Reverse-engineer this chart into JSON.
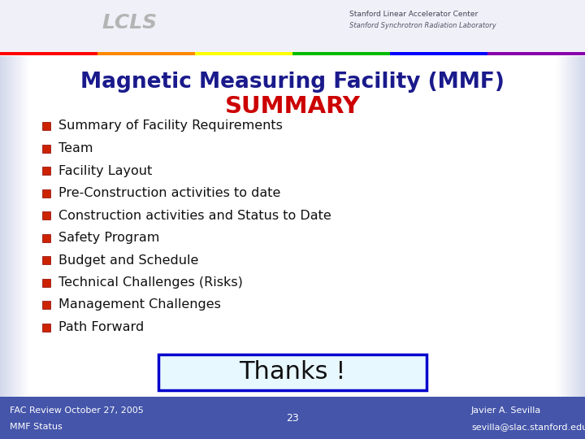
{
  "title_line1": "Magnetic Measuring Facility (MMF)",
  "title_line2": "SUMMARY",
  "title_line1_color": "#1a1a8c",
  "title_line2_color": "#cc0000",
  "bullet_items": [
    "Summary of Facility Requirements",
    "Team",
    "Facility Layout",
    "Pre-Construction activities to date",
    "Construction activities and Status to Date",
    "Safety Program",
    "Budget and Schedule",
    "Technical Challenges (Risks)",
    "Management Challenges",
    "Path Forward"
  ],
  "bullet_color": "#cc2200",
  "text_color": "#111111",
  "bg_color": "#ffffff",
  "footer_bg": "#4455aa",
  "footer_text_color": "#ffffff",
  "footer_left_line1": "FAC Review October 27, 2005",
  "footer_left_line2": "MMF Status",
  "footer_center": "23",
  "footer_right_line1": "Javier A. Sevilla",
  "footer_right_line2": "sevilla@slac.stanford.edu",
  "thanks_text": "Thanks !",
  "thanks_bg": "#e8f8ff",
  "thanks_border": "#0000cc",
  "header_stripe_colors": [
    "#ff0000",
    "#ff8800",
    "#ffff00",
    "#00bb00",
    "#0000ff",
    "#8800aa"
  ],
  "header_bg": "#f0f0f8",
  "lcls_text": "LCLS",
  "slac_line1": "Stanford Linear Accelerator Center",
  "slac_line2": "Stanford Synchrotron Radiation Laboratory",
  "side_gradient_color": "#8090c8",
  "side_gradient_steps": 30
}
